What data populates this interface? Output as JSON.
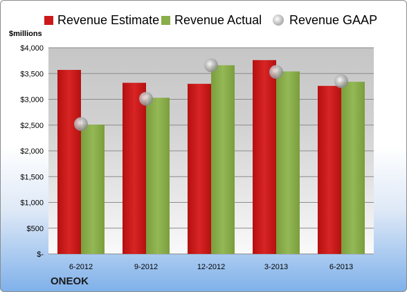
{
  "legend": {
    "estimate": "Revenue Estimate",
    "actual": "Revenue Actual",
    "gaap": "Revenue GAAP"
  },
  "unit_label": "$millions",
  "company": "ONEOK",
  "colors": {
    "estimate": "#cc1a1a",
    "actual": "#8aae4a",
    "gaap_marker": "#a8a8a8"
  },
  "chart_data": {
    "type": "bar",
    "categories": [
      "6-2012",
      "9-2012",
      "12-2012",
      "3-2013",
      "6-2013"
    ],
    "series": [
      {
        "name": "Revenue Estimate",
        "type": "bar",
        "values": [
          3570,
          3320,
          3300,
          3760,
          3260
        ]
      },
      {
        "name": "Revenue Actual",
        "type": "bar",
        "values": [
          2510,
          3030,
          3660,
          3540,
          3340
        ]
      },
      {
        "name": "Revenue GAAP",
        "type": "scatter",
        "values": [
          2520,
          3010,
          3660,
          3530,
          3350
        ]
      }
    ],
    "ylabel": "$millions",
    "ylim": [
      0,
      4000
    ],
    "yticks": [
      0,
      500,
      1000,
      1500,
      2000,
      2500,
      3000,
      3500,
      4000
    ],
    "ytick_labels": [
      "$-",
      "$500",
      "$1,000",
      "$1,500",
      "$2,000",
      "$2,500",
      "$3,000",
      "$3,500",
      "$4,000"
    ],
    "grid": true,
    "legend_position": "top"
  }
}
